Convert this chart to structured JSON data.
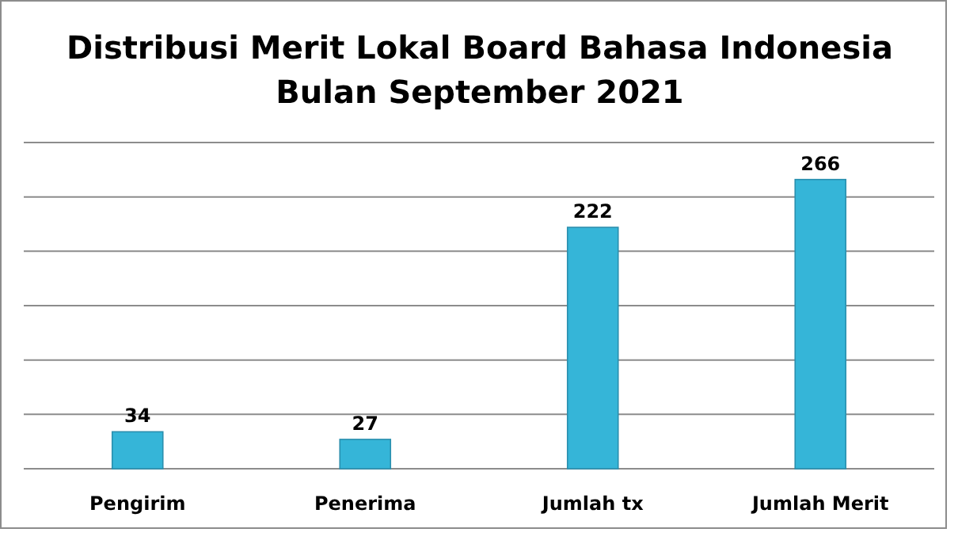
{
  "chart_data": {
    "type": "bar",
    "title": "Distribusi Merit Lokal Board Bahasa Indonesia\nBulan September 2021",
    "categories": [
      "Pengirim",
      "Penerima",
      "Jumlah tx",
      "Jumlah Merit"
    ],
    "values": [
      34,
      27,
      222,
      266
    ],
    "color": "#35b5d8",
    "ylim": [
      0,
      300
    ],
    "yticks": [
      {
        "value": 0,
        "label": null
      },
      {
        "value": 50,
        "label": null
      },
      {
        "value": 100,
        "label": null
      },
      {
        "value": 150,
        "label": null
      },
      {
        "value": 200,
        "label": null
      },
      {
        "value": 250,
        "label": null
      },
      {
        "value": 300,
        "label": null
      }
    ],
    "grid": "y",
    "tick_labels": "x",
    "data_labels": true
  }
}
